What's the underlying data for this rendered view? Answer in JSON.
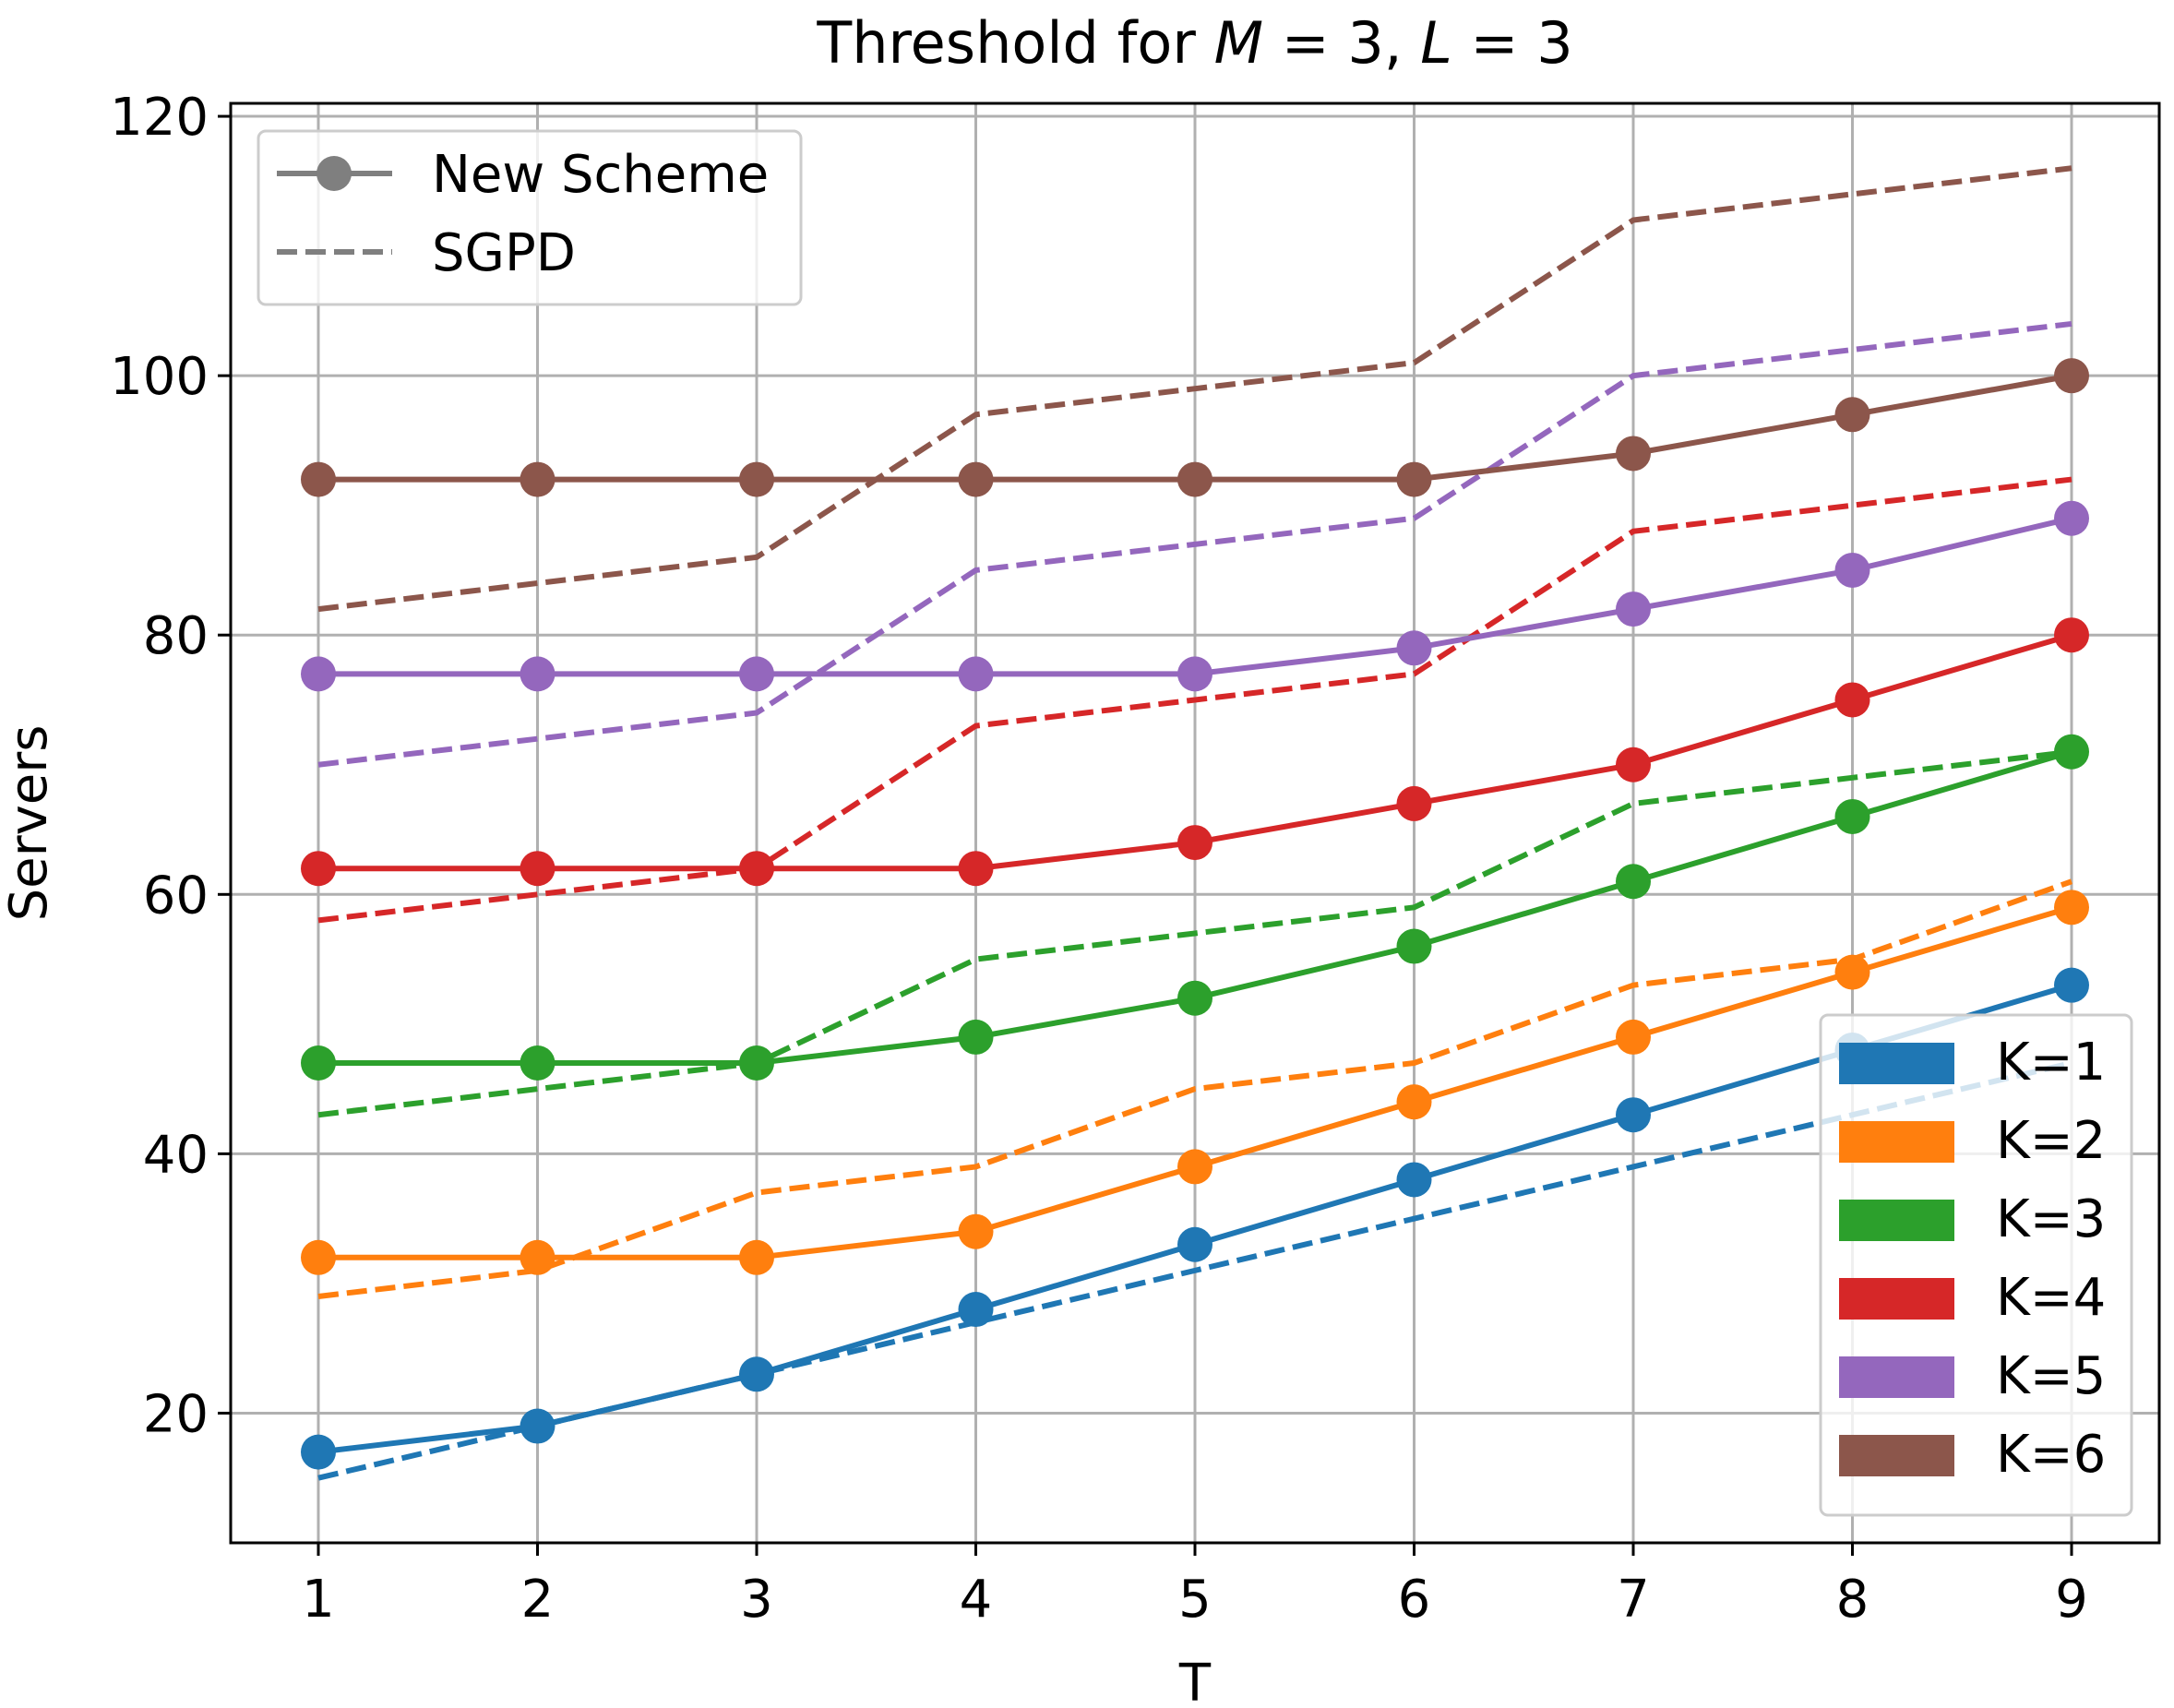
{
  "chart_data": {
    "type": "line",
    "title_prefix": "Threshold for ",
    "title_math": {
      "M": "M",
      "eq1": " = 3, ",
      "L": "L",
      "eq2": " = 3"
    },
    "xlabel": "T",
    "ylabel": "Servers",
    "x": [
      1,
      2,
      3,
      4,
      5,
      6,
      7,
      8,
      9
    ],
    "xlim": [
      0.6,
      9.4
    ],
    "ylim": [
      10,
      121
    ],
    "yticks": [
      20,
      40,
      60,
      80,
      100,
      120
    ],
    "grid": true,
    "style_legend": {
      "placement": "top-left",
      "entries": [
        {
          "label": "New Scheme",
          "style": "solid-marker",
          "color": "#7f7f7f"
        },
        {
          "label": "SGPD",
          "style": "dashed",
          "color": "#7f7f7f"
        }
      ]
    },
    "series_legend_placement": "bottom-right",
    "series": [
      {
        "name": "K=1",
        "color": "#1f77b4",
        "new_scheme": [
          17,
          19,
          23,
          28,
          33,
          38,
          43,
          48,
          53
        ],
        "sgpd": [
          15,
          19,
          23,
          27,
          31,
          35,
          39,
          43,
          47
        ]
      },
      {
        "name": "K=2",
        "color": "#ff7f0e",
        "new_scheme": [
          32,
          32,
          32,
          34,
          39,
          44,
          49,
          54,
          59
        ],
        "sgpd": [
          29,
          31,
          37,
          39,
          45,
          47,
          53,
          55,
          61
        ]
      },
      {
        "name": "K=3",
        "color": "#2ca02c",
        "new_scheme": [
          47,
          47,
          47,
          49,
          52,
          56,
          61,
          66,
          71
        ],
        "sgpd": [
          43,
          45,
          47,
          55,
          57,
          59,
          67,
          69,
          71
        ]
      },
      {
        "name": "K=4",
        "color": "#d62728",
        "new_scheme": [
          62,
          62,
          62,
          62,
          64,
          67,
          70,
          75,
          80
        ],
        "sgpd": [
          58,
          60,
          62,
          73,
          75,
          77,
          88,
          90,
          92
        ]
      },
      {
        "name": "K=5",
        "color": "#9467bd",
        "new_scheme": [
          77,
          77,
          77,
          77,
          77,
          79,
          82,
          85,
          89
        ],
        "sgpd": [
          70,
          72,
          74,
          85,
          87,
          89,
          100,
          102,
          104
        ]
      },
      {
        "name": "K=6",
        "color": "#8c564b",
        "new_scheme": [
          92,
          92,
          92,
          92,
          92,
          92,
          94,
          97,
          100
        ],
        "sgpd": [
          82,
          84,
          86,
          97,
          99,
          101,
          112,
          114,
          116
        ]
      }
    ]
  }
}
